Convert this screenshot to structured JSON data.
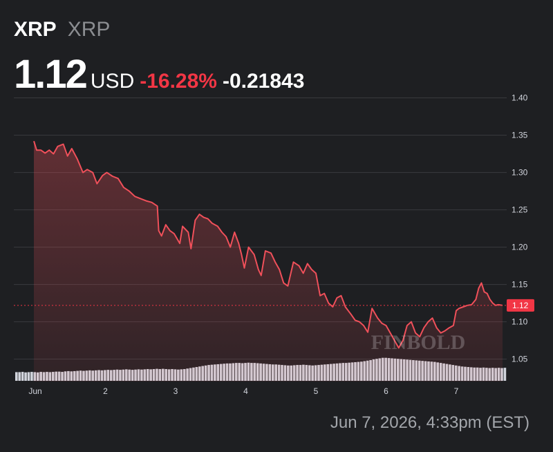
{
  "header": {
    "symbol": "XRP",
    "name": "XRP",
    "price": "1.12",
    "currency": "USD",
    "change_percent": "-16.28%",
    "change_value": "-0.21843"
  },
  "timestamp": "Jun 7, 2026, 4:33pm (EST)",
  "watermark": "FINBOLD",
  "colors": {
    "background": "#1e1f22",
    "line": "#f0505a",
    "negative": "#f23645",
    "volume": "#d1d4dc",
    "grid": "#3a3b3f"
  },
  "chart_data": {
    "type": "area",
    "ylim": [
      1.02,
      1.42
    ],
    "y_ticks": [
      "1.40",
      "1.35",
      "1.30",
      "1.25",
      "1.20",
      "1.15",
      "1.10",
      "1.05"
    ],
    "x_ticks": [
      {
        "label": "Jun",
        "x": 1
      },
      {
        "label": "2",
        "x": 2
      },
      {
        "label": "3",
        "x": 3
      },
      {
        "label": "4",
        "x": 4
      },
      {
        "label": "5",
        "x": 5
      },
      {
        "label": "6",
        "x": 6
      },
      {
        "label": "7",
        "x": 7
      }
    ],
    "last_price_label": "1.12",
    "last_price": 1.122,
    "price_series": {
      "x": [
        0.98,
        1.02,
        1.08,
        1.14,
        1.2,
        1.26,
        1.32,
        1.4,
        1.46,
        1.52,
        1.6,
        1.68,
        1.74,
        1.82,
        1.88,
        1.96,
        2.02,
        2.1,
        2.18,
        2.26,
        2.34,
        2.42,
        2.5,
        2.58,
        2.66,
        2.74,
        2.76,
        2.8,
        2.86,
        2.92,
        2.98,
        3.06,
        3.1,
        3.18,
        3.22,
        3.28,
        3.34,
        3.4,
        3.46,
        3.52,
        3.6,
        3.66,
        3.72,
        3.78,
        3.84,
        3.9,
        3.94,
        3.98,
        4.04,
        4.12,
        4.18,
        4.22,
        4.28,
        4.36,
        4.42,
        4.48,
        4.54,
        4.6,
        4.68,
        4.76,
        4.82,
        4.88,
        4.94,
        5.0,
        5.06,
        5.12,
        5.18,
        5.24,
        5.3,
        5.36,
        5.42,
        5.5,
        5.56,
        5.62,
        5.68,
        5.74,
        5.8,
        5.88,
        5.94,
        6.0,
        6.06,
        6.12,
        6.18,
        6.24,
        6.3,
        6.36,
        6.42,
        6.48,
        6.54,
        6.6,
        6.66,
        6.72,
        6.78,
        6.84,
        6.9,
        6.96,
        7.0,
        7.04,
        7.1,
        7.16,
        7.22,
        7.28,
        7.32,
        7.36,
        7.4,
        7.44,
        7.48,
        7.52,
        7.56,
        7.6,
        7.66
      ],
      "y": [
        1.342,
        1.33,
        1.33,
        1.326,
        1.33,
        1.325,
        1.335,
        1.338,
        1.322,
        1.332,
        1.318,
        1.3,
        1.304,
        1.3,
        1.285,
        1.296,
        1.3,
        1.295,
        1.292,
        1.28,
        1.275,
        1.268,
        1.265,
        1.262,
        1.26,
        1.255,
        1.222,
        1.215,
        1.23,
        1.222,
        1.218,
        1.205,
        1.228,
        1.22,
        1.198,
        1.236,
        1.244,
        1.24,
        1.238,
        1.232,
        1.228,
        1.22,
        1.214,
        1.2,
        1.22,
        1.205,
        1.19,
        1.172,
        1.2,
        1.19,
        1.17,
        1.162,
        1.195,
        1.192,
        1.18,
        1.17,
        1.152,
        1.148,
        1.18,
        1.175,
        1.165,
        1.178,
        1.17,
        1.165,
        1.135,
        1.138,
        1.125,
        1.12,
        1.132,
        1.135,
        1.12,
        1.11,
        1.102,
        1.1,
        1.095,
        1.086,
        1.118,
        1.105,
        1.098,
        1.095,
        1.085,
        1.075,
        1.065,
        1.075,
        1.095,
        1.1,
        1.085,
        1.08,
        1.092,
        1.1,
        1.105,
        1.092,
        1.085,
        1.088,
        1.092,
        1.095,
        1.115,
        1.118,
        1.12,
        1.122,
        1.123,
        1.13,
        1.145,
        1.152,
        1.14,
        1.138,
        1.13,
        1.125,
        1.122,
        1.123,
        1.122
      ]
    },
    "volume": [
      0.34,
      0.34,
      0.35,
      0.33,
      0.34,
      0.35,
      0.34,
      0.33,
      0.35,
      0.34,
      0.35,
      0.34,
      0.35,
      0.36,
      0.36,
      0.35,
      0.37,
      0.38,
      0.37,
      0.38,
      0.39,
      0.4,
      0.39,
      0.4,
      0.41,
      0.4,
      0.41,
      0.42,
      0.41,
      0.42,
      0.43,
      0.42,
      0.43,
      0.44,
      0.43,
      0.44,
      0.45,
      0.44,
      0.43,
      0.44,
      0.45,
      0.44,
      0.45,
      0.46,
      0.45,
      0.46,
      0.47,
      0.46,
      0.47,
      0.46,
      0.45,
      0.46,
      0.45,
      0.44,
      0.45,
      0.46,
      0.48,
      0.5,
      0.52,
      0.54,
      0.56,
      0.58,
      0.6,
      0.62,
      0.63,
      0.64,
      0.65,
      0.66,
      0.67,
      0.68,
      0.68,
      0.69,
      0.7,
      0.7,
      0.69,
      0.7,
      0.71,
      0.7,
      0.7,
      0.69,
      0.68,
      0.67,
      0.66,
      0.65,
      0.64,
      0.64,
      0.63,
      0.62,
      0.61,
      0.6,
      0.6,
      0.61,
      0.62,
      0.62,
      0.63,
      0.62,
      0.61,
      0.6,
      0.61,
      0.62,
      0.63,
      0.64,
      0.65,
      0.66,
      0.67,
      0.68,
      0.69,
      0.7,
      0.7,
      0.71,
      0.72,
      0.73,
      0.74,
      0.75,
      0.77,
      0.79,
      0.81,
      0.84,
      0.86,
      0.88,
      0.9,
      0.9,
      0.89,
      0.88,
      0.87,
      0.86,
      0.85,
      0.84,
      0.83,
      0.82,
      0.81,
      0.8,
      0.79,
      0.78,
      0.77,
      0.76,
      0.75,
      0.74,
      0.72,
      0.7,
      0.68,
      0.66,
      0.64,
      0.62,
      0.6,
      0.58,
      0.56,
      0.55,
      0.54,
      0.53,
      0.52,
      0.52,
      0.51,
      0.52,
      0.51,
      0.5,
      0.51,
      0.5,
      0.51,
      0.5,
      0.51
    ]
  }
}
